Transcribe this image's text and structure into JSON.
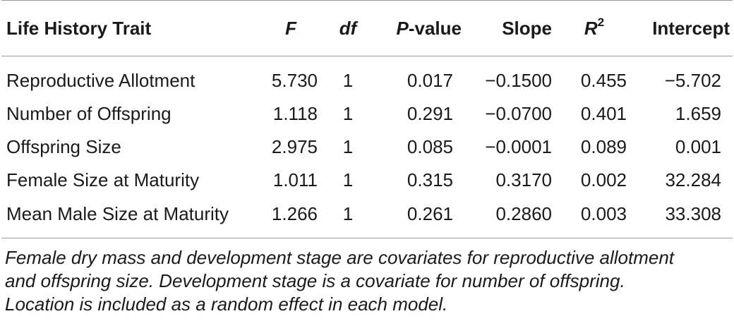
{
  "table": {
    "headers": {
      "trait": "Life History Trait",
      "f": "F",
      "df": "df",
      "p_italic": "P",
      "p_rest": "-value",
      "slope": "Slope",
      "r2_base": "R",
      "r2_sup": "2",
      "intercept": "Intercept"
    },
    "rows": [
      {
        "trait": "Reproductive Allotment",
        "f": "5.730",
        "df": "1",
        "p": "0.017",
        "slope": "−0.1500",
        "r2": "0.455",
        "intercept": "−5.702"
      },
      {
        "trait": "Number of Offspring",
        "f": "1.118",
        "df": "1",
        "p": "0.291",
        "slope": "−0.0700",
        "r2": "0.401",
        "intercept": "1.659"
      },
      {
        "trait": "Offspring Size",
        "f": "2.975",
        "df": "1",
        "p": "0.085",
        "slope": "−0.0001",
        "r2": "0.089",
        "intercept": "0.001"
      },
      {
        "trait": "Female Size at Maturity",
        "f": "1.011",
        "df": "1",
        "p": "0.315",
        "slope": "0.3170",
        "r2": "0.002",
        "intercept": "32.284"
      },
      {
        "trait": "Mean Male Size at Maturity",
        "f": "1.266",
        "df": "1",
        "p": "0.261",
        "slope": "0.2860",
        "r2": "0.003",
        "intercept": "33.308"
      }
    ]
  },
  "footnote": {
    "line1": "Female dry mass and development stage are covariates for reproductive allotment",
    "line2": "and offspring size. Development stage is a covariate for number of offspring.",
    "line3": "Location is included as a random effect in each model."
  }
}
